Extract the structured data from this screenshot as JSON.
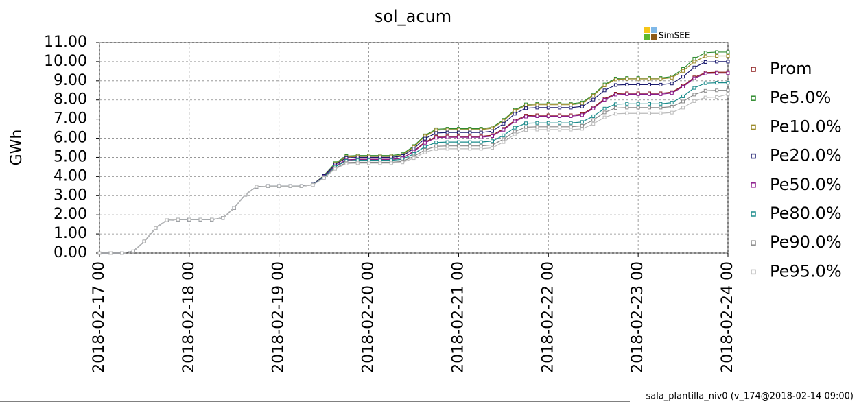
{
  "chart_data": {
    "type": "line",
    "title": "sol_acum",
    "y_label": "GWh",
    "logo": "SimSEE",
    "footer": "sala_plantilla_niv0 (v_174@2018-02-14 09:00)",
    "grid": true,
    "categories": [
      "2018-02-17 00",
      null,
      null,
      null,
      null,
      null,
      null,
      null,
      "2018-02-18 00",
      null,
      null,
      null,
      null,
      null,
      null,
      null,
      "2018-02-19 00",
      null,
      null,
      null,
      null,
      null,
      null,
      null,
      "2018-02-20 00",
      null,
      null,
      null,
      null,
      null,
      null,
      null,
      "2018-02-21 00",
      null,
      null,
      null,
      null,
      null,
      null,
      null,
      "2018-02-22 00",
      null,
      null,
      null,
      null,
      null,
      null,
      null,
      "2018-02-23 00",
      null,
      null,
      null,
      null,
      null,
      null,
      null,
      "2018-02-24 00"
    ],
    "ylim": [
      0,
      11
    ],
    "yticks": [
      {
        "value": 0,
        "label": "0.00"
      },
      {
        "value": 1,
        "label": "1.00"
      },
      {
        "value": 2,
        "label": "2.00"
      },
      {
        "value": 3,
        "label": "3.00"
      },
      {
        "value": 4,
        "label": "4.00"
      },
      {
        "value": 5,
        "label": "5.00"
      },
      {
        "value": 6,
        "label": "6.00"
      },
      {
        "value": 7,
        "label": "7.00"
      },
      {
        "value": 8,
        "label": "8.00"
      },
      {
        "value": 9,
        "label": "9.00"
      },
      {
        "value": 10,
        "label": "10.00"
      },
      {
        "value": 11,
        "label": "11.00"
      }
    ],
    "series": [
      {
        "name": "Prom",
        "color": "#8b1a1a",
        "values": [
          0,
          0,
          0,
          0.09,
          0.61,
          1.31,
          1.72,
          1.75,
          1.75,
          1.75,
          1.75,
          1.84,
          2.36,
          3.06,
          3.47,
          3.5,
          3.5,
          3.5,
          3.5,
          3.57,
          3.99,
          4.55,
          4.87,
          4.9,
          4.9,
          4.9,
          4.9,
          4.96,
          5.32,
          5.8,
          6.08,
          6.1,
          6.1,
          6.1,
          6.1,
          6.16,
          6.49,
          6.93,
          7.18,
          7.2,
          7.2,
          7.2,
          7.2,
          7.26,
          7.6,
          8.06,
          8.33,
          8.35,
          8.35,
          8.35,
          8.35,
          8.41,
          8.74,
          9.18,
          9.43,
          9.45,
          9.45
        ]
      },
      {
        "name": "Pe5.0%",
        "color": "#2e8b2e",
        "values": [
          0,
          0,
          0,
          0.09,
          0.61,
          1.31,
          1.72,
          1.75,
          1.75,
          1.75,
          1.75,
          1.84,
          2.36,
          3.06,
          3.47,
          3.5,
          3.5,
          3.5,
          3.5,
          3.58,
          4.06,
          4.7,
          5.07,
          5.1,
          5.1,
          5.1,
          5.1,
          5.17,
          5.59,
          6.15,
          6.47,
          6.5,
          6.5,
          6.5,
          6.5,
          6.57,
          6.96,
          7.48,
          7.77,
          7.8,
          7.8,
          7.8,
          7.8,
          7.87,
          8.27,
          8.81,
          9.12,
          9.15,
          9.15,
          9.15,
          9.15,
          9.22,
          9.62,
          10.16,
          10.47,
          10.5,
          10.5
        ]
      },
      {
        "name": "Pe10.0%",
        "color": "#9b8a2a",
        "values": [
          0,
          0,
          0,
          0.09,
          0.61,
          1.31,
          1.72,
          1.75,
          1.75,
          1.75,
          1.75,
          1.84,
          2.36,
          3.06,
          3.47,
          3.5,
          3.5,
          3.5,
          3.5,
          3.58,
          4.04,
          4.66,
          5.02,
          5.05,
          5.05,
          5.05,
          5.05,
          5.12,
          5.54,
          6.1,
          6.42,
          6.45,
          6.45,
          6.45,
          6.45,
          6.52,
          6.91,
          7.43,
          7.72,
          7.75,
          7.75,
          7.75,
          7.75,
          7.82,
          8.22,
          8.76,
          9.07,
          9.1,
          9.1,
          9.1,
          9.1,
          9.16,
          9.52,
          10.0,
          10.28,
          10.3,
          10.3
        ]
      },
      {
        "name": "Pe20.0%",
        "color": "#1a1a6e",
        "values": [
          0,
          0,
          0,
          0.09,
          0.61,
          1.31,
          1.72,
          1.75,
          1.75,
          1.75,
          1.75,
          1.84,
          2.36,
          3.06,
          3.47,
          3.5,
          3.5,
          3.5,
          3.5,
          3.58,
          4.03,
          4.63,
          4.97,
          5.0,
          5.0,
          5.0,
          5.0,
          5.07,
          5.46,
          5.98,
          6.27,
          6.3,
          6.3,
          6.3,
          6.3,
          6.37,
          6.76,
          7.28,
          7.57,
          7.6,
          7.6,
          7.6,
          7.6,
          7.66,
          8.02,
          8.5,
          8.78,
          8.8,
          8.8,
          8.8,
          8.8,
          8.86,
          9.22,
          9.7,
          9.98,
          10.0,
          10.0
        ]
      },
      {
        "name": "Pe50.0%",
        "color": "#8b1a8b",
        "values": [
          0,
          0,
          0,
          0.09,
          0.61,
          1.31,
          1.72,
          1.75,
          1.75,
          1.75,
          1.75,
          1.84,
          2.36,
          3.06,
          3.47,
          3.5,
          3.5,
          3.5,
          3.5,
          3.57,
          3.99,
          4.55,
          4.87,
          4.9,
          4.9,
          4.9,
          4.9,
          4.96,
          5.3,
          5.76,
          6.03,
          6.05,
          6.05,
          6.05,
          6.05,
          6.11,
          6.44,
          6.88,
          7.13,
          7.15,
          7.15,
          7.15,
          7.15,
          7.21,
          7.55,
          8.01,
          8.28,
          8.3,
          8.3,
          8.3,
          8.3,
          8.36,
          8.69,
          9.13,
          9.38,
          9.4,
          9.4
        ]
      },
      {
        "name": "Pe80.0%",
        "color": "#1a8b8b",
        "values": [
          0,
          0,
          0,
          0.09,
          0.61,
          1.31,
          1.72,
          1.75,
          1.75,
          1.75,
          1.75,
          1.84,
          2.36,
          3.06,
          3.47,
          3.5,
          3.5,
          3.5,
          3.5,
          3.57,
          3.97,
          4.51,
          4.82,
          4.85,
          4.85,
          4.85,
          4.85,
          4.9,
          5.18,
          5.56,
          5.78,
          5.8,
          5.8,
          5.8,
          5.8,
          5.85,
          6.15,
          6.55,
          6.78,
          6.8,
          6.8,
          6.8,
          6.8,
          6.85,
          7.15,
          7.55,
          7.78,
          7.8,
          7.8,
          7.8,
          7.8,
          7.86,
          8.19,
          8.63,
          8.88,
          8.9,
          8.9
        ]
      },
      {
        "name": "Pe90.0%",
        "color": "#888888",
        "values": [
          0,
          0,
          0,
          0.09,
          0.61,
          1.31,
          1.72,
          1.75,
          1.75,
          1.75,
          1.75,
          1.84,
          2.36,
          3.06,
          3.47,
          3.5,
          3.5,
          3.5,
          3.5,
          3.56,
          3.94,
          4.44,
          4.73,
          4.75,
          4.75,
          4.75,
          4.75,
          4.79,
          5.05,
          5.39,
          5.58,
          5.6,
          5.6,
          5.6,
          5.6,
          5.65,
          5.95,
          6.35,
          6.58,
          6.6,
          6.6,
          6.6,
          6.6,
          6.65,
          6.95,
          7.35,
          7.58,
          7.6,
          7.6,
          7.6,
          7.6,
          7.65,
          7.92,
          8.28,
          8.48,
          8.5,
          8.5
        ]
      },
      {
        "name": "Pe95.0%",
        "color": "#bbbbbb",
        "values": [
          0,
          0,
          0,
          0.09,
          0.61,
          1.31,
          1.72,
          1.75,
          1.75,
          1.75,
          1.75,
          1.84,
          2.36,
          3.06,
          3.47,
          3.5,
          3.5,
          3.5,
          3.5,
          3.56,
          3.92,
          4.4,
          4.68,
          4.7,
          4.7,
          4.7,
          4.7,
          4.74,
          4.96,
          5.26,
          5.44,
          5.45,
          5.45,
          5.45,
          5.45,
          5.5,
          5.8,
          6.2,
          6.43,
          6.45,
          6.45,
          6.45,
          6.45,
          6.49,
          6.75,
          7.09,
          7.28,
          7.3,
          7.3,
          7.3,
          7.3,
          7.34,
          7.6,
          7.94,
          8.13,
          8.15,
          8.3
        ]
      }
    ]
  }
}
